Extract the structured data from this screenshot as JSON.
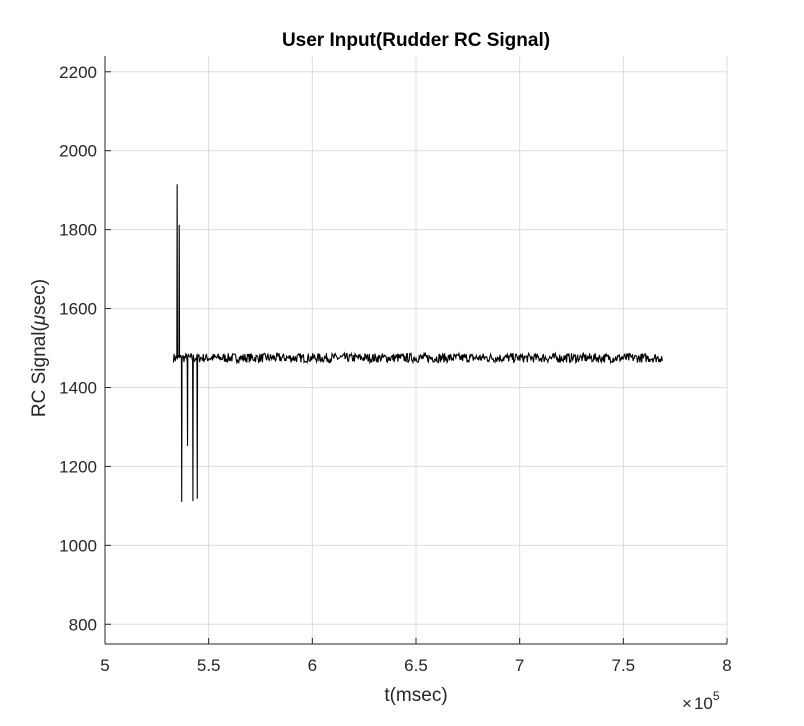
{
  "chart_data": {
    "type": "line",
    "title": "User Input(Rudder RC Signal)",
    "xlabel": "t(msec)",
    "ylabel_prefix": "RC Signal(",
    "ylabel_mu": "μ",
    "ylabel_suffix": "sec)",
    "x_exponent": {
      "times": "×",
      "base": "10",
      "power": "5"
    },
    "xlim": [
      500000,
      800000
    ],
    "ylim": [
      750,
      2240
    ],
    "xticks": [
      500000,
      550000,
      600000,
      650000,
      700000,
      750000,
      800000
    ],
    "xtick_labels": [
      "5",
      "5.5",
      "6",
      "6.5",
      "7",
      "7.5",
      "8"
    ],
    "yticks": [
      800,
      1000,
      1200,
      1400,
      1600,
      1800,
      2000,
      2200
    ],
    "ytick_labels": [
      "800",
      "1000",
      "1200",
      "1400",
      "1600",
      "1800",
      "2000",
      "2200"
    ],
    "grid": true,
    "series": [
      {
        "color": "#000000",
        "baseline": 1475,
        "noise_amplitude": 12,
        "x_range": [
          533000,
          769000
        ],
        "spikes": [
          {
            "x": 534800,
            "y": 1915
          },
          {
            "x": 535800,
            "y": 1812
          },
          {
            "x": 537000,
            "y": 1110
          },
          {
            "x": 539800,
            "y": 1252
          },
          {
            "x": 542400,
            "y": 1112
          },
          {
            "x": 544500,
            "y": 1118
          }
        ]
      }
    ],
    "colors": {
      "line": "#000000",
      "grid": "#dcdcdc",
      "axis": "#262626"
    }
  }
}
